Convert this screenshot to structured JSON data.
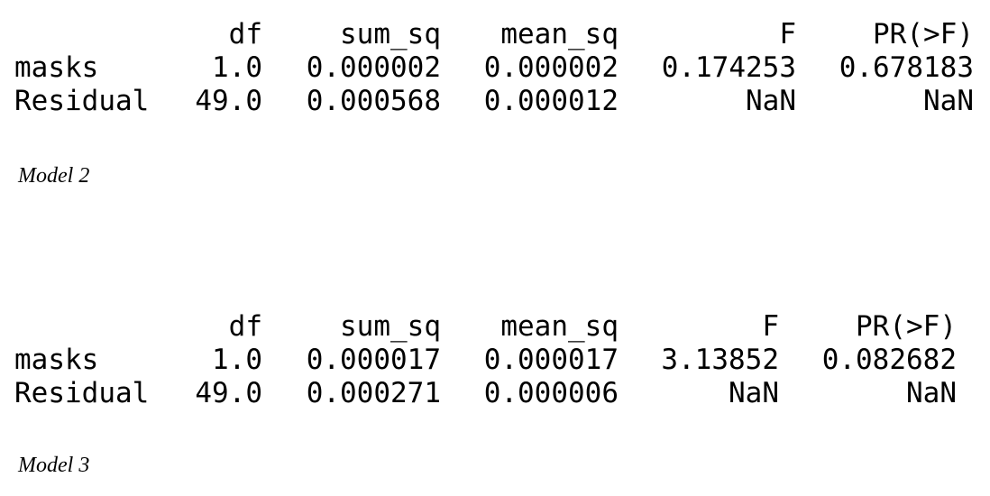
{
  "tables": [
    {
      "columns": [
        "",
        "df",
        "sum_sq",
        "mean_sq",
        "F",
        "PR(>F)"
      ],
      "rows": [
        {
          "label": "masks",
          "df": "1.0",
          "sum_sq": "0.000002",
          "mean_sq": "0.000002",
          "F": "0.174253",
          "pr": "0.678183"
        },
        {
          "label": "Residual",
          "df": "49.0",
          "sum_sq": "0.000568",
          "mean_sq": "0.000012",
          "F": "NaN",
          "pr": "NaN"
        }
      ],
      "caption": "Model 2"
    },
    {
      "columns": [
        "",
        "df",
        "sum_sq",
        "mean_sq",
        "F",
        "PR(>F)"
      ],
      "rows": [
        {
          "label": "masks",
          "df": "1.0",
          "sum_sq": "0.000017",
          "mean_sq": "0.000017",
          "F": "3.13852",
          "pr": "0.082682"
        },
        {
          "label": "Residual",
          "df": "49.0",
          "sum_sq": "0.000271",
          "mean_sq": "0.000006",
          "F": "NaN",
          "pr": "NaN"
        }
      ],
      "caption": "Model 3"
    }
  ]
}
